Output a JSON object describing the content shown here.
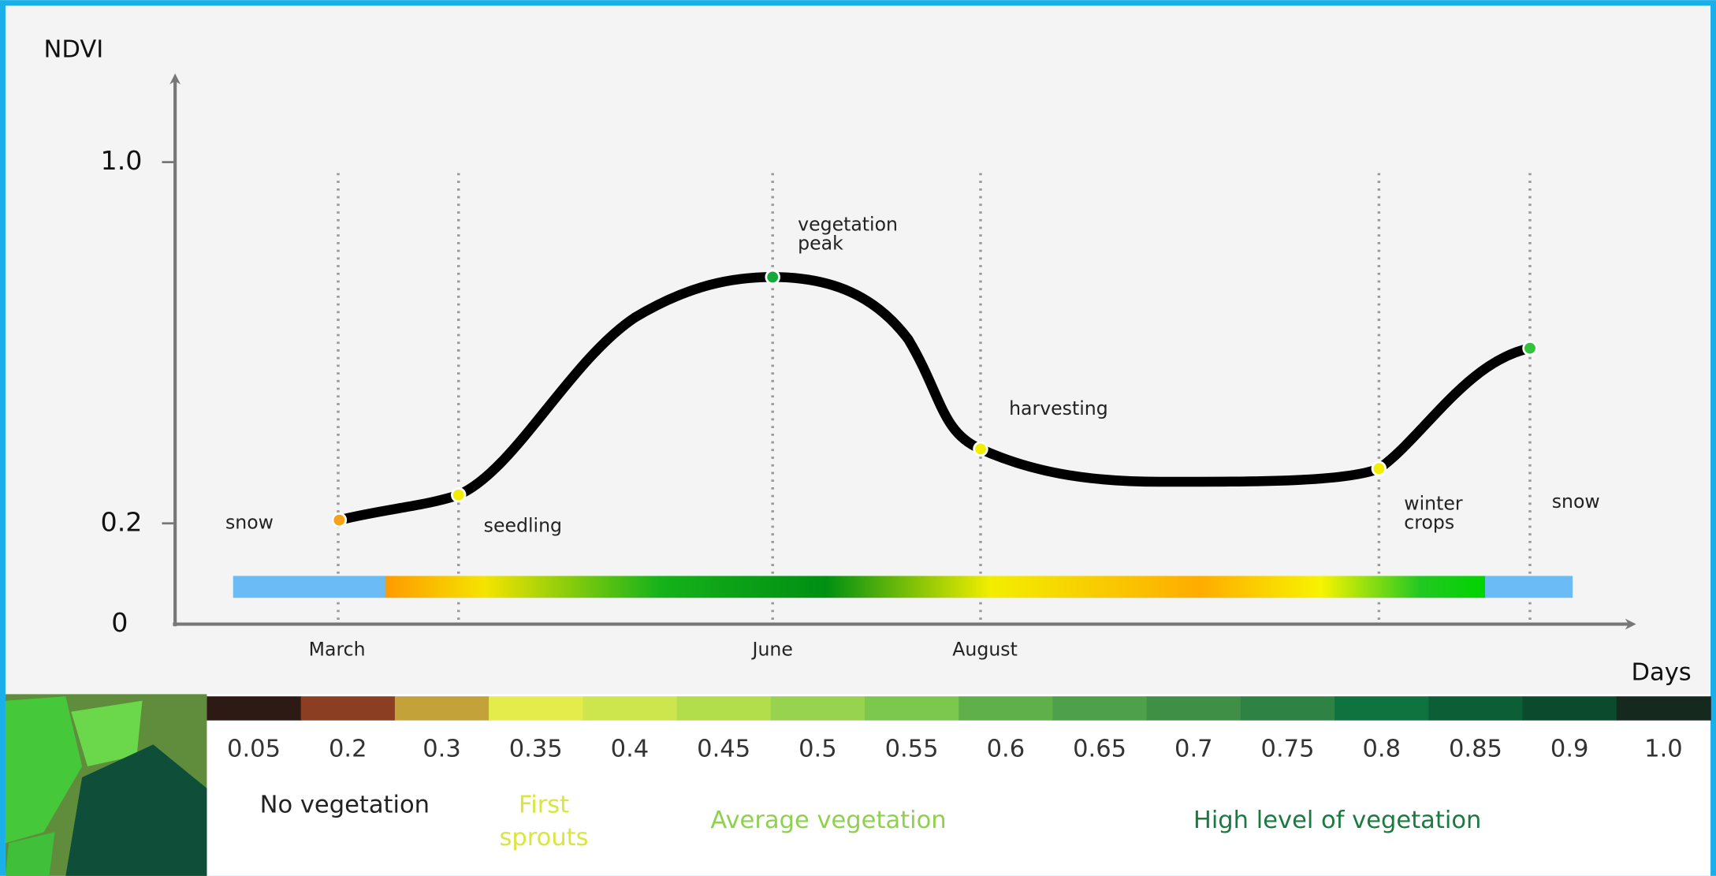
{
  "axis": {
    "y_title": "NDVI",
    "x_title": "Days",
    "y_ticks": [
      "1.0",
      "0.2",
      "0"
    ],
    "months": [
      "March",
      "June",
      "August"
    ]
  },
  "annotations": [
    {
      "lines": [
        "snow"
      ]
    },
    {
      "lines": [
        "seedling"
      ]
    },
    {
      "lines": [
        "vegetation",
        "peak"
      ]
    },
    {
      "lines": [
        "harvesting"
      ]
    },
    {
      "lines": [
        "winter",
        "crops"
      ]
    },
    {
      "lines": [
        "snow"
      ]
    }
  ],
  "scale": {
    "values": [
      "0.05",
      "0.2",
      "0.3",
      "0.35",
      "0.4",
      "0.45",
      "0.5",
      "0.55",
      "0.6",
      "0.65",
      "0.7",
      "0.75",
      "0.8",
      "0.85",
      "0.9",
      "1.0"
    ],
    "colors": [
      "#2e1a14",
      "#8b3e22",
      "#c4a23a",
      "#e3ec4b",
      "#cde64e",
      "#b3de4c",
      "#97d34e",
      "#7cc84f",
      "#5faf4a",
      "#4ea04a",
      "#3f9046",
      "#2e8243",
      "#0f7340",
      "#0b5e35",
      "#0b4a2d",
      "#16291f"
    ],
    "groups": [
      {
        "lines": [
          "No vegetation"
        ],
        "color": "#222222"
      },
      {
        "lines": [
          "First",
          "sprouts"
        ],
        "color": "#d9e63f"
      },
      {
        "lines": [
          "Average vegetation"
        ],
        "color": "#8fd14f"
      },
      {
        "lines": [
          "High level of vegetation"
        ],
        "color": "#1a7a3f"
      }
    ]
  }
}
